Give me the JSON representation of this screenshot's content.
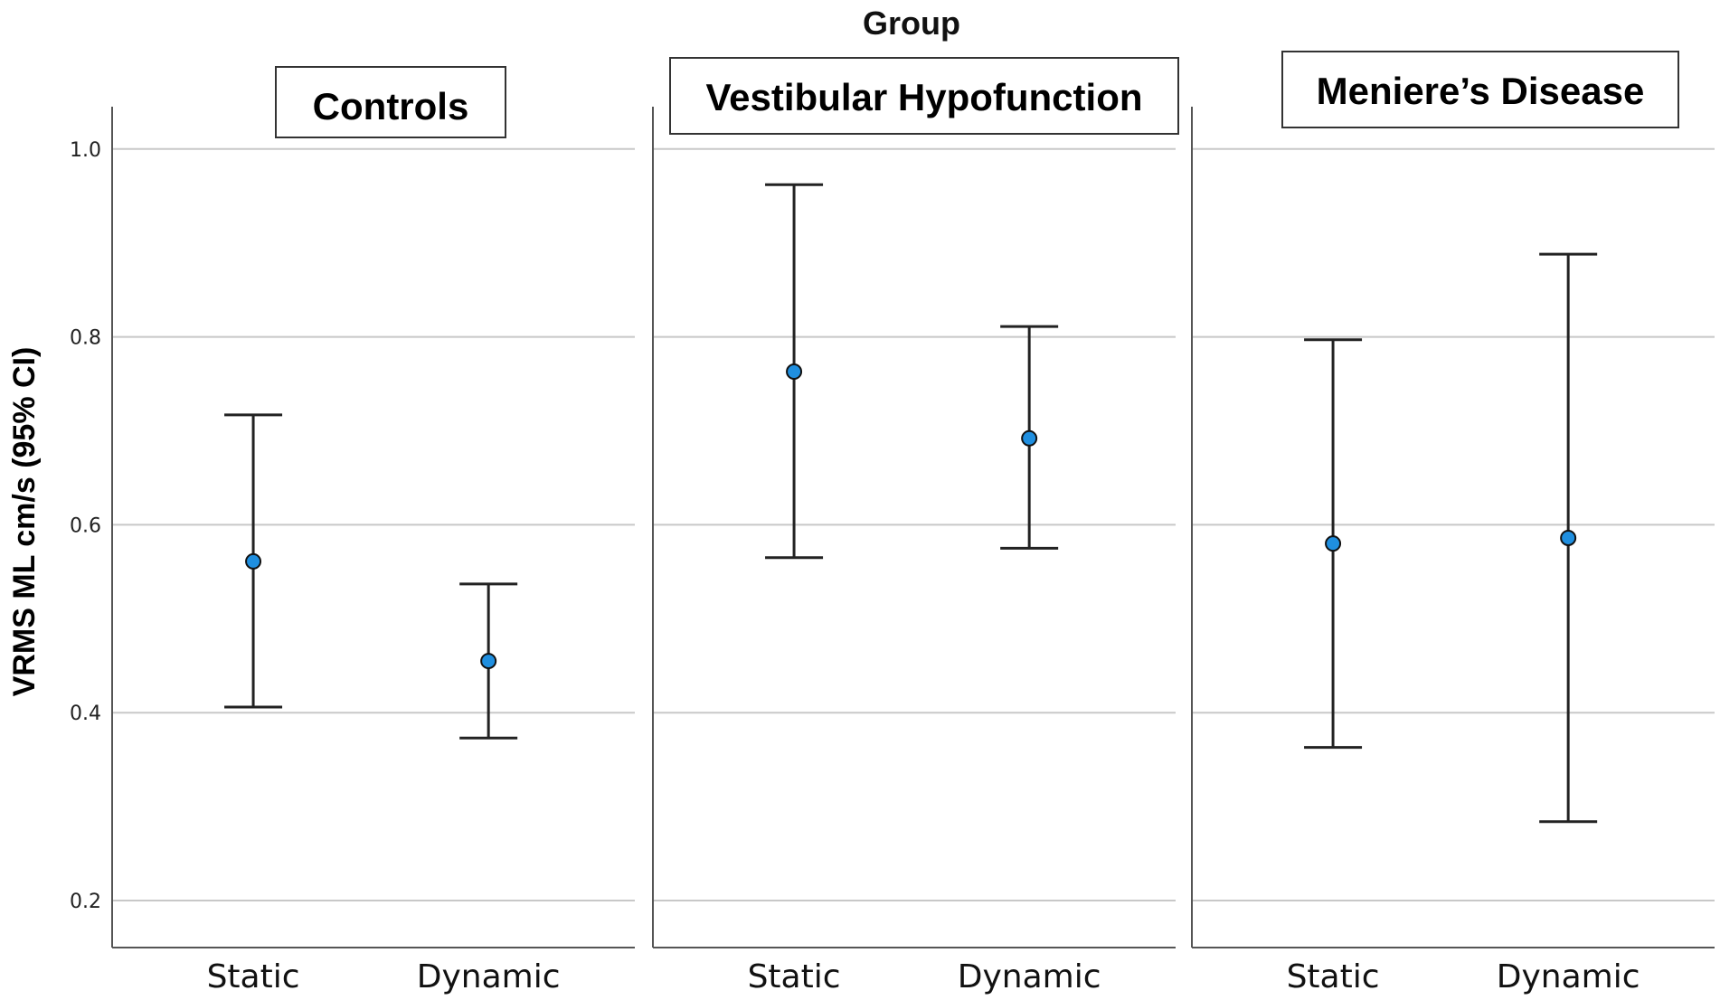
{
  "chart_data": {
    "type": "errorbar",
    "title": "Group",
    "ylabel": "VRMS ML cm/s (95% CI)",
    "ylim": [
      0.15,
      1.045
    ],
    "yticks": [
      0.2,
      0.4,
      0.6,
      0.8,
      1.0
    ],
    "ytick_labels": [
      "0.2",
      "0.4",
      "0.6",
      "0.8",
      "1.0"
    ],
    "grid": true,
    "categories": [
      "Static",
      "Dynamic"
    ],
    "marker_color": "#1f8fe0",
    "panels": [
      {
        "name": "Controls",
        "points": [
          {
            "category": "Static",
            "mean": 0.561,
            "lower": 0.406,
            "upper": 0.717
          },
          {
            "category": "Dynamic",
            "mean": 0.455,
            "lower": 0.373,
            "upper": 0.537
          }
        ]
      },
      {
        "name": "Vestibular Hypofunction",
        "points": [
          {
            "category": "Static",
            "mean": 0.763,
            "lower": 0.565,
            "upper": 0.962
          },
          {
            "category": "Dynamic",
            "mean": 0.692,
            "lower": 0.575,
            "upper": 0.811
          }
        ]
      },
      {
        "name": "Meniere’s Disease",
        "points": [
          {
            "category": "Static",
            "mean": 0.58,
            "lower": 0.363,
            "upper": 0.797
          },
          {
            "category": "Dynamic",
            "mean": 0.586,
            "lower": 0.284,
            "upper": 0.888
          }
        ]
      }
    ]
  }
}
